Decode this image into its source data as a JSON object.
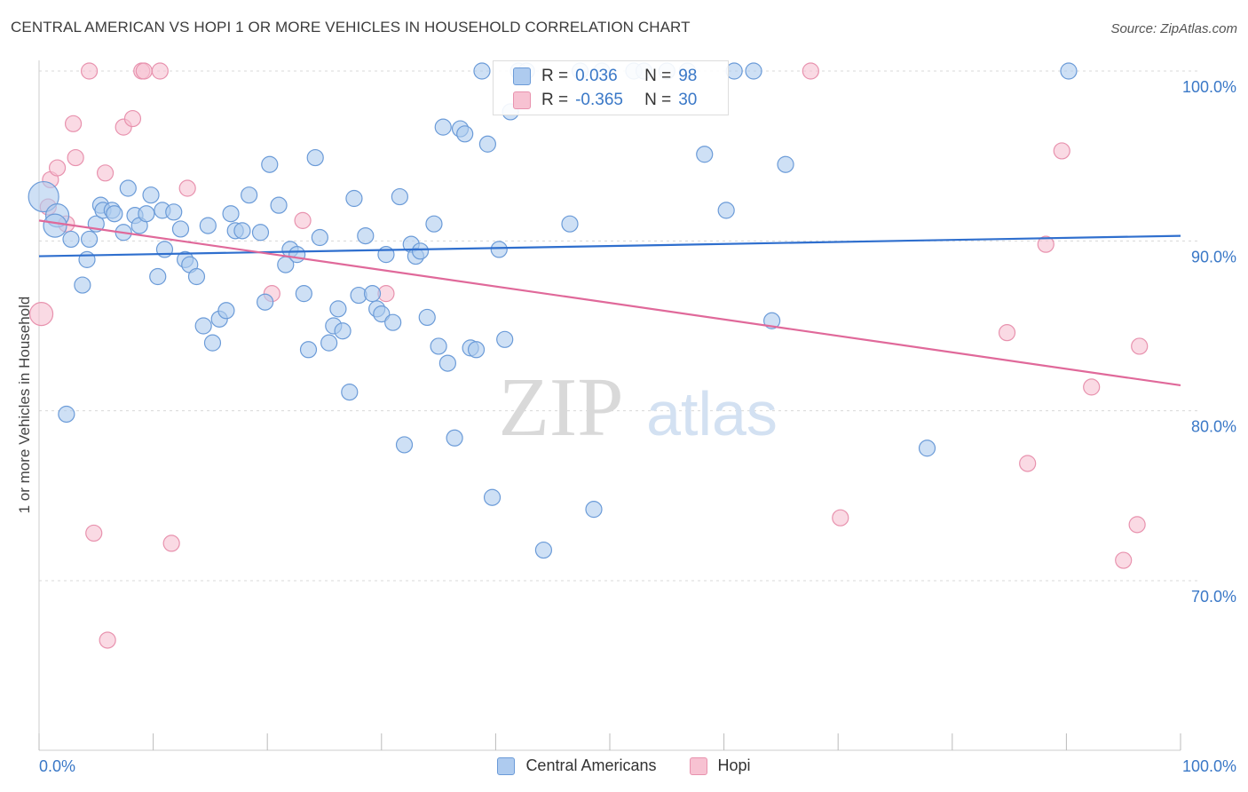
{
  "title": "CENTRAL AMERICAN VS HOPI 1 OR MORE VEHICLES IN HOUSEHOLD CORRELATION CHART",
  "source": "Source: ZipAtlas.com",
  "watermark": {
    "zip": "ZIP",
    "atlas": "atlas"
  },
  "legend_box": {
    "rows": [
      {
        "r_label": "R =",
        "r_value": "0.036",
        "n_label": "N =",
        "n_value": "98"
      },
      {
        "r_label": "R =",
        "r_value": "-0.365",
        "n_label": "N =",
        "n_value": "30"
      }
    ]
  },
  "legend_bottom": [
    "Central Americans",
    "Hopi"
  ],
  "colors": {
    "blue_fill": "#aecbef",
    "blue_stroke": "#6b9bd8",
    "blue_line": "#2f6fce",
    "pink_fill": "#f7c2d2",
    "pink_stroke": "#e892ae",
    "pink_line": "#e0699a",
    "axis_label": "#3a78c7",
    "grid": "#d8d8d8"
  },
  "chart_data": {
    "type": "scatter",
    "title": "CENTRAL AMERICAN VS HOPI 1 OR MORE VEHICLES IN HOUSEHOLD CORRELATION CHART",
    "xlabel": "",
    "ylabel": "1 or more Vehicles in Household",
    "xlim": [
      0,
      100
    ],
    "ylim": [
      59,
      101.5
    ],
    "x_tick_labels": [
      "0.0%",
      "100.0%"
    ],
    "y_ticks": [
      70,
      80,
      90,
      100
    ],
    "y_tick_labels": [
      "70.0%",
      "80.0%",
      "90.0%",
      "100.0%"
    ],
    "grid": true,
    "series": [
      {
        "name": "Central Americans",
        "R": 0.036,
        "N": 98,
        "trend": {
          "x": [
            0,
            100
          ],
          "y": [
            89.1,
            90.3
          ]
        },
        "points": [
          [
            0.4,
            92.6,
            3
          ],
          [
            1.6,
            91.5,
            2
          ],
          [
            1.4,
            90.9,
            2
          ],
          [
            2.8,
            90.1,
            1
          ],
          [
            4.4,
            90.1,
            1
          ],
          [
            4.2,
            88.9,
            1
          ],
          [
            3.8,
            87.4,
            1
          ],
          [
            2.4,
            79.8,
            1
          ],
          [
            5.0,
            91.0,
            1
          ],
          [
            5.4,
            92.1,
            1
          ],
          [
            5.6,
            91.8,
            1
          ],
          [
            6.4,
            91.8,
            1
          ],
          [
            6.6,
            91.6,
            1
          ],
          [
            7.4,
            90.5,
            1
          ],
          [
            7.8,
            93.1,
            1
          ],
          [
            8.4,
            91.5,
            1
          ],
          [
            8.8,
            90.9,
            1
          ],
          [
            9.4,
            91.6,
            1
          ],
          [
            9.8,
            92.7,
            1
          ],
          [
            10.4,
            87.9,
            1
          ],
          [
            11.0,
            89.5,
            1
          ],
          [
            10.8,
            91.8,
            1
          ],
          [
            11.8,
            91.7,
            1
          ],
          [
            12.4,
            90.7,
            1
          ],
          [
            12.8,
            88.9,
            1
          ],
          [
            13.2,
            88.6,
            1
          ],
          [
            13.8,
            87.9,
            1
          ],
          [
            14.4,
            85.0,
            1
          ],
          [
            14.8,
            90.9,
            1
          ],
          [
            15.2,
            84.0,
            1
          ],
          [
            15.8,
            85.4,
            1
          ],
          [
            16.4,
            85.9,
            1
          ],
          [
            16.8,
            91.6,
            1
          ],
          [
            17.2,
            90.6,
            1
          ],
          [
            17.8,
            90.6,
            1
          ],
          [
            18.4,
            92.7,
            1
          ],
          [
            19.4,
            90.5,
            1
          ],
          [
            19.8,
            86.4,
            1
          ],
          [
            20.2,
            94.5,
            1
          ],
          [
            21.0,
            92.1,
            1
          ],
          [
            21.6,
            88.6,
            1
          ],
          [
            22.0,
            89.5,
            1
          ],
          [
            22.6,
            89.2,
            1
          ],
          [
            23.2,
            86.9,
            1
          ],
          [
            23.6,
            83.6,
            1
          ],
          [
            24.2,
            94.9,
            1
          ],
          [
            24.6,
            90.2,
            1
          ],
          [
            25.4,
            84.0,
            1
          ],
          [
            25.8,
            85.0,
            1
          ],
          [
            26.2,
            86.0,
            1
          ],
          [
            26.6,
            84.7,
            1
          ],
          [
            27.2,
            81.1,
            1
          ],
          [
            27.6,
            92.5,
            1
          ],
          [
            28.0,
            86.8,
            1
          ],
          [
            28.6,
            90.3,
            1
          ],
          [
            29.2,
            86.9,
            1
          ],
          [
            29.6,
            86.0,
            1
          ],
          [
            30.0,
            85.7,
            1
          ],
          [
            30.4,
            89.2,
            1
          ],
          [
            31.0,
            85.2,
            1
          ],
          [
            31.6,
            92.6,
            1
          ],
          [
            32.0,
            78.0,
            1
          ],
          [
            32.6,
            89.8,
            1
          ],
          [
            33.0,
            89.1,
            1
          ],
          [
            33.4,
            89.4,
            1
          ],
          [
            34.0,
            85.5,
            1
          ],
          [
            34.6,
            91.0,
            1
          ],
          [
            35.0,
            83.8,
            1
          ],
          [
            35.4,
            96.7,
            1
          ],
          [
            35.8,
            82.8,
            1
          ],
          [
            36.4,
            78.4,
            1
          ],
          [
            36.9,
            96.6,
            1
          ],
          [
            37.3,
            96.3,
            1
          ],
          [
            37.8,
            83.7,
            1
          ],
          [
            38.3,
            83.6,
            1
          ],
          [
            38.8,
            100.0,
            1
          ],
          [
            39.3,
            95.7,
            1
          ],
          [
            39.7,
            74.9,
            1
          ],
          [
            40.3,
            89.5,
            1
          ],
          [
            40.8,
            84.2,
            1
          ],
          [
            41.3,
            97.6,
            1
          ],
          [
            42.0,
            100.0,
            1
          ],
          [
            42.7,
            100.0,
            1
          ],
          [
            44.2,
            71.8,
            1
          ],
          [
            46.5,
            91.0,
            1
          ],
          [
            47.4,
            100.0,
            1
          ],
          [
            48.6,
            74.2,
            1
          ],
          [
            49.3,
            100.0,
            1
          ],
          [
            52.1,
            100.0,
            1
          ],
          [
            53.0,
            100.0,
            1
          ],
          [
            55.0,
            100.0,
            1
          ],
          [
            56.8,
            100.0,
            1
          ],
          [
            58.3,
            95.1,
            1
          ],
          [
            60.2,
            91.8,
            1
          ],
          [
            60.9,
            100.0,
            1
          ],
          [
            62.6,
            100.0,
            1
          ],
          [
            64.2,
            85.3,
            1
          ],
          [
            65.4,
            94.5,
            1
          ],
          [
            77.8,
            77.8,
            1
          ],
          [
            90.2,
            100.0,
            1
          ]
        ]
      },
      {
        "name": "Hopi",
        "R": -0.365,
        "N": 30,
        "trend": {
          "x": [
            0,
            100
          ],
          "y": [
            91.2,
            81.5
          ]
        },
        "points": [
          [
            0.2,
            85.7,
            2
          ],
          [
            0.8,
            92.0,
            1
          ],
          [
            1.0,
            93.6,
            1
          ],
          [
            1.6,
            94.3,
            1
          ],
          [
            2.4,
            91.0,
            1
          ],
          [
            3.0,
            96.9,
            1
          ],
          [
            3.2,
            94.9,
            1
          ],
          [
            4.4,
            100.0,
            1
          ],
          [
            4.8,
            72.8,
            1
          ],
          [
            5.8,
            94.0,
            1
          ],
          [
            6.0,
            66.5,
            1
          ],
          [
            7.4,
            96.7,
            1
          ],
          [
            8.2,
            97.2,
            1
          ],
          [
            9.0,
            100.0,
            1
          ],
          [
            9.2,
            100.0,
            1
          ],
          [
            10.6,
            100.0,
            1
          ],
          [
            11.6,
            72.2,
            1
          ],
          [
            13.0,
            93.1,
            1
          ],
          [
            20.4,
            86.9,
            1
          ],
          [
            23.1,
            91.2,
            1
          ],
          [
            30.4,
            86.9,
            1
          ],
          [
            67.6,
            100.0,
            1
          ],
          [
            70.2,
            73.7,
            1
          ],
          [
            84.8,
            84.6,
            1
          ],
          [
            86.6,
            76.9,
            1
          ],
          [
            88.2,
            89.8,
            1
          ],
          [
            89.6,
            95.3,
            1
          ],
          [
            92.2,
            81.4,
            1
          ],
          [
            95.0,
            71.2,
            1
          ],
          [
            96.2,
            73.3,
            1
          ],
          [
            96.4,
            83.8,
            1
          ]
        ]
      }
    ]
  }
}
